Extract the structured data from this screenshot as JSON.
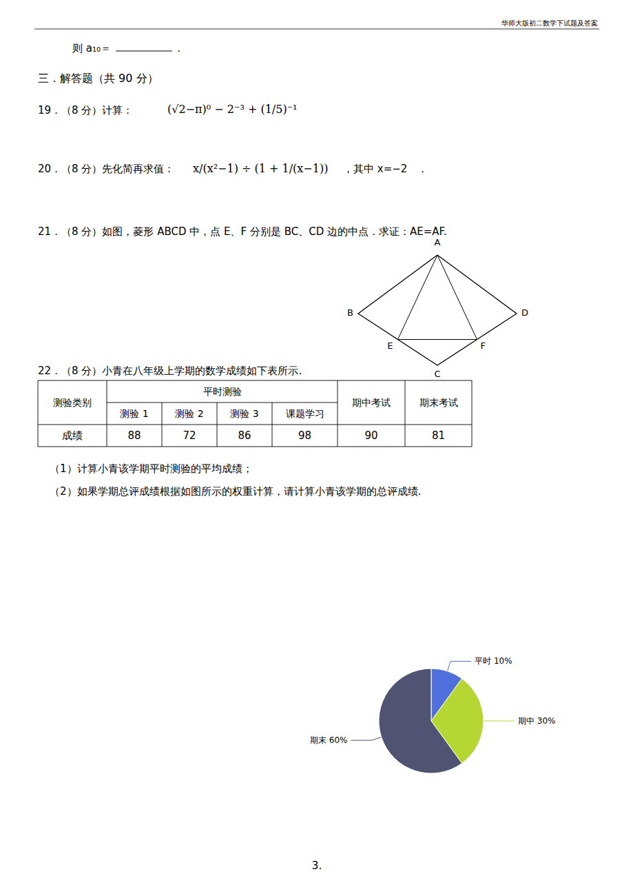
{
  "chart_data": {
    "type": "pie",
    "categories": [
      "平时",
      "期中",
      "期末"
    ],
    "values": [
      10,
      30,
      60
    ],
    "value_labels": [
      "10%",
      "30%",
      "60%"
    ],
    "data_labels": true,
    "annotations": [
      "华师大版初二数学下试题及答案",
      "则 a₁₀＝",
      "．",
      "三．解答题（共 90 分）",
      "19．（8 分）计算：",
      "(√2−π)⁰ − 2⁻³ + (1/5)⁻¹",
      "20．（8 分）先化简再求值：",
      "x/(x²−1) ÷ (1 + 1/(x−1))",
      "，其中 x=−2　．",
      "21．（8 分）如图，菱形 ABCD 中，点 E、F 分别是 BC、CD 边的中点．求证：AE=AF.",
      "A",
      "B",
      "C",
      "D",
      "E",
      "F",
      "22．（8 分）小青在八年级上学期的数学成绩如下表所示.",
      "测验类别",
      "平时测验",
      "期中考试",
      "期末考试",
      "测验 1",
      "测验 2",
      "测验 3",
      "课题学习",
      "成绩",
      "88",
      "72",
      "86",
      "98",
      "90",
      "81",
      "（1）计算小青该学期平时测验的平均成绩；",
      "（2）如果学期总评成绩根据如图所示的权重计算，请计算小青该学期的总评成绩.",
      "3."
    ]
  }
}
